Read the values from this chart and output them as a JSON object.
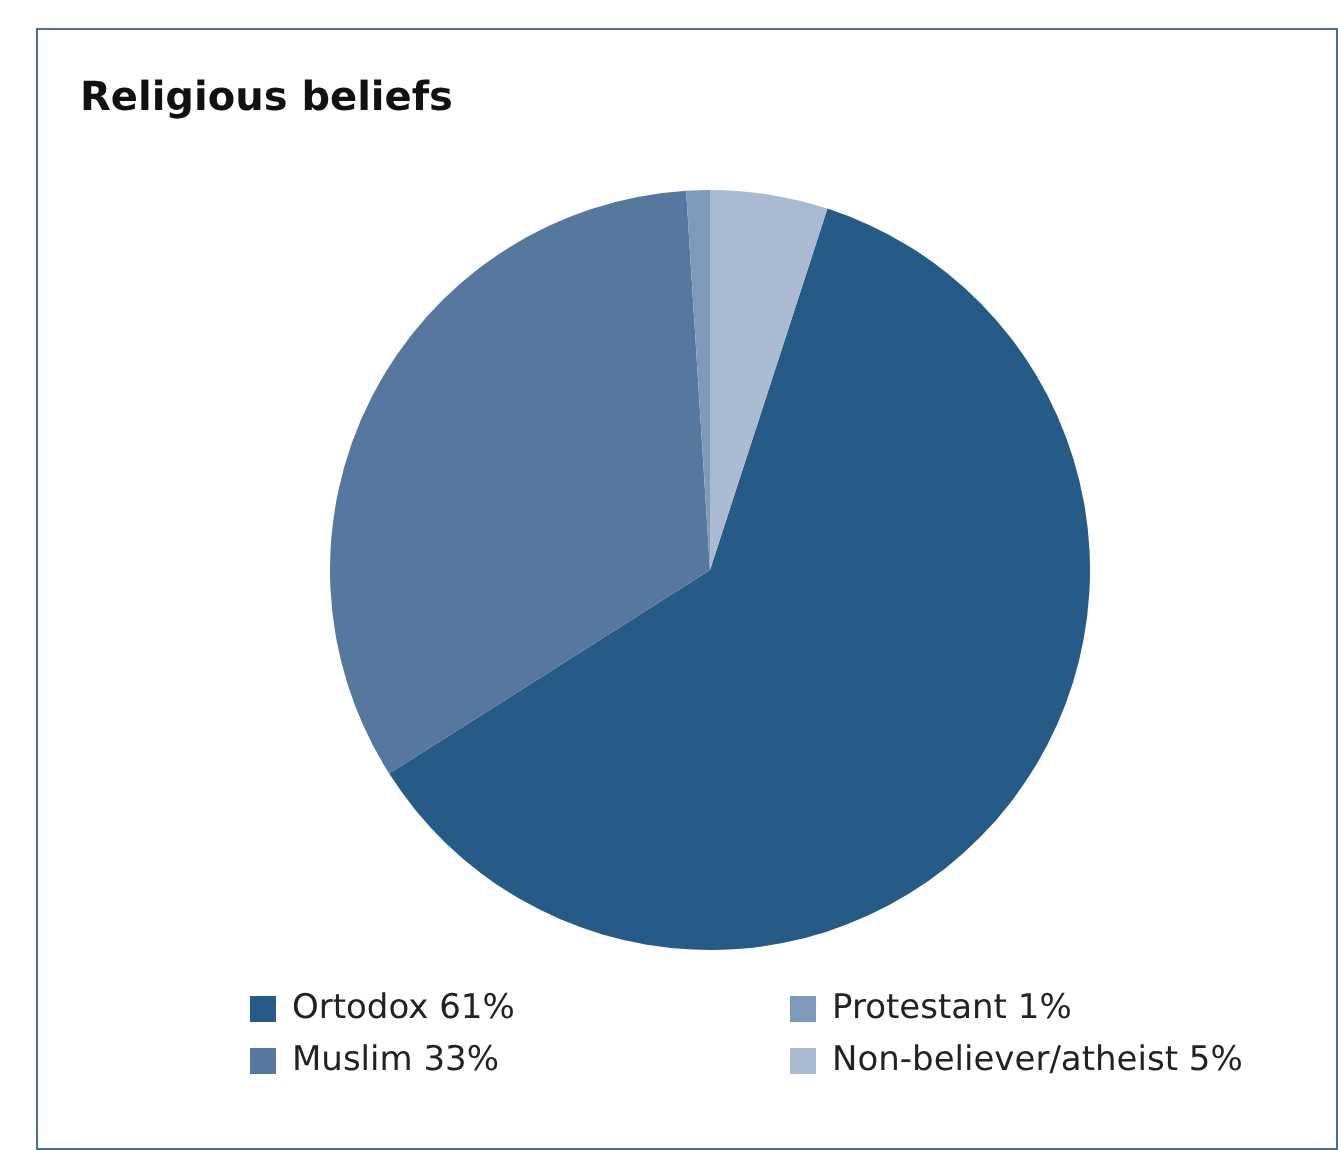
{
  "chart_data": {
    "type": "pie",
    "title": "Religious beliefs",
    "categories": [
      "Ortodox 61%",
      "Muslim 33%",
      "Protestant 1%",
      "Non-believer/atheist 5%"
    ],
    "values": [
      61,
      33,
      1,
      5
    ],
    "colors": [
      "#265a87",
      "#56789e",
      "#7f99bb",
      "#abbad3"
    ],
    "legend": "bottom"
  }
}
